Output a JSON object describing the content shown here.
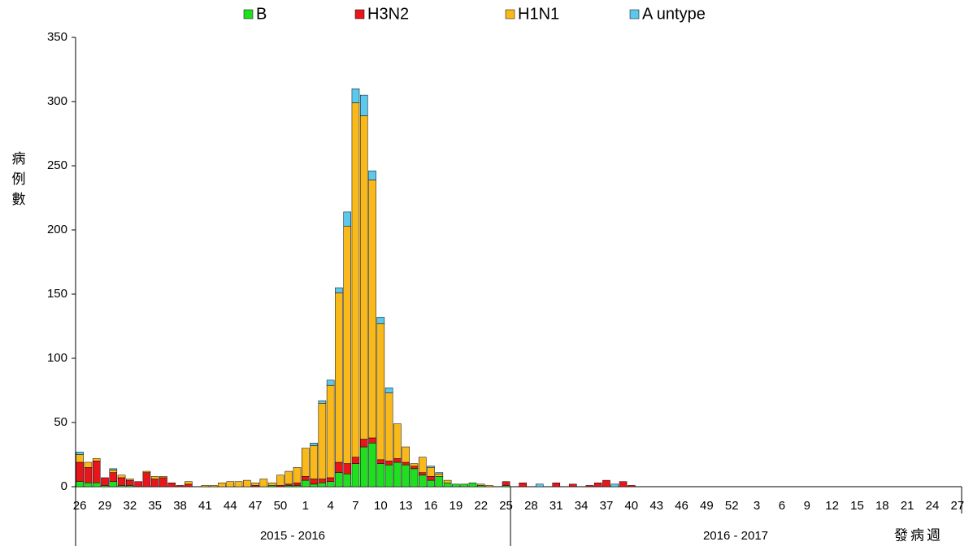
{
  "chart_data": {
    "type": "stacked_bar",
    "y_label": "病例數",
    "x_label": "發病週",
    "group_labels": [
      "2015 - 2016",
      "2016 - 2017"
    ],
    "categories": [
      "26",
      null,
      null,
      "29",
      null,
      null,
      "32",
      null,
      null,
      "35",
      null,
      null,
      "38",
      null,
      null,
      "41",
      null,
      null,
      "44",
      null,
      null,
      "47",
      null,
      null,
      "50",
      null,
      null,
      "1",
      null,
      null,
      "4",
      null,
      null,
      "7",
      null,
      null,
      "10",
      null,
      null,
      "13",
      null,
      null,
      "16",
      null,
      null,
      "19",
      null,
      null,
      "22",
      null,
      null,
      "25",
      null,
      null,
      "28",
      null,
      null,
      "31",
      null,
      null,
      "34",
      null,
      null,
      "37",
      null,
      null,
      "40",
      null,
      null,
      "43",
      null,
      null,
      "46",
      null,
      null,
      "49",
      null,
      null,
      "52",
      null,
      null,
      "3",
      null,
      null,
      "6",
      null,
      null,
      "9",
      null,
      null,
      "12",
      null,
      null,
      "15",
      null,
      null,
      "18",
      null,
      null,
      "21",
      null,
      null,
      "24",
      null,
      null,
      "27"
    ],
    "series": [
      {
        "name": "B",
        "color": "#1ee01e",
        "values": [
          4,
          3,
          3,
          1,
          4,
          1,
          1,
          0,
          0,
          0,
          0,
          0,
          0,
          0,
          0,
          0,
          0,
          0,
          0,
          0,
          0,
          0,
          0,
          1,
          0,
          1,
          1,
          5,
          2,
          3,
          4,
          11,
          10,
          18,
          31,
          34,
          18,
          17,
          19,
          17,
          14,
          9,
          5,
          8,
          3,
          2,
          2,
          3,
          1,
          0,
          0,
          1,
          0,
          0,
          0,
          0,
          0,
          0,
          0,
          0,
          0,
          0,
          0,
          0,
          0,
          0,
          0,
          0,
          0,
          0,
          0,
          0,
          0,
          0,
          0,
          0,
          0,
          0,
          0,
          0,
          0,
          0,
          0,
          0,
          0,
          0,
          0,
          0,
          0,
          0,
          0,
          0,
          0,
          0,
          0,
          0,
          0,
          0,
          0,
          0,
          0,
          0,
          0,
          0,
          0,
          0
        ]
      },
      {
        "name": "H3N2",
        "color": "#e8161b",
        "values": [
          15,
          12,
          17,
          6,
          7,
          6,
          4,
          4,
          11,
          6,
          7,
          3,
          1,
          2,
          0,
          0,
          0,
          0,
          0,
          0,
          0,
          1,
          0,
          0,
          1,
          1,
          2,
          3,
          4,
          3,
          3,
          8,
          8,
          5,
          6,
          4,
          3,
          3,
          3,
          2,
          2,
          2,
          3,
          0,
          0,
          0,
          0,
          0,
          0,
          0,
          0,
          3,
          0,
          3,
          0,
          0,
          0,
          3,
          0,
          2,
          0,
          1,
          3,
          5,
          0,
          4,
          1,
          0,
          0,
          0,
          0,
          0,
          0,
          0,
          0,
          0,
          0,
          0,
          0,
          0,
          0,
          0,
          0,
          0,
          0,
          0,
          0,
          0,
          0,
          0,
          0,
          0,
          0,
          0,
          0,
          0,
          0,
          0,
          0,
          0,
          0,
          0,
          0,
          0,
          0,
          0
        ]
      },
      {
        "name": "H1N1",
        "color": "#f9b91b",
        "values": [
          6,
          4,
          2,
          0,
          2,
          2,
          1,
          0,
          1,
          2,
          1,
          0,
          0,
          2,
          0,
          1,
          1,
          3,
          4,
          4,
          5,
          2,
          6,
          2,
          8,
          10,
          12,
          22,
          26,
          59,
          72,
          132,
          185,
          276,
          252,
          201,
          106,
          53,
          27,
          12,
          2,
          12,
          7,
          2,
          2,
          0,
          0,
          0,
          1,
          1,
          0,
          0,
          0,
          0,
          0,
          0,
          0,
          0,
          0,
          0,
          0,
          0,
          0,
          0,
          0,
          0,
          0,
          0,
          0,
          0,
          0,
          0,
          0,
          0,
          0,
          0,
          0,
          0,
          0,
          0,
          0,
          0,
          0,
          0,
          0,
          0,
          0,
          0,
          0,
          0,
          0,
          0,
          0,
          0,
          0,
          0,
          0,
          0,
          0,
          0,
          0,
          0,
          0,
          0,
          0,
          0
        ]
      },
      {
        "name": "A untype",
        "color": "#5bc8ec",
        "values": [
          2,
          0,
          0,
          0,
          1,
          0,
          0,
          0,
          0,
          0,
          0,
          0,
          0,
          0,
          0,
          0,
          0,
          0,
          0,
          0,
          0,
          0,
          0,
          0,
          0,
          0,
          0,
          0,
          2,
          2,
          4,
          4,
          11,
          11,
          16,
          7,
          5,
          4,
          0,
          0,
          0,
          0,
          1,
          1,
          0,
          0,
          0,
          0,
          0,
          0,
          0,
          0,
          0,
          0,
          0,
          2,
          0,
          0,
          0,
          0,
          0,
          0,
          0,
          0,
          2,
          0,
          0,
          0,
          0,
          0,
          0,
          0,
          0,
          0,
          0,
          0,
          0,
          0,
          0,
          0,
          0,
          0,
          0,
          0,
          0,
          0,
          0,
          0,
          0,
          0,
          0,
          0,
          0,
          0,
          0,
          0,
          0,
          0,
          0,
          0,
          0,
          0,
          0,
          0,
          0,
          0
        ]
      }
    ],
    "ylim": [
      0,
      350
    ],
    "yticks": [
      0,
      50,
      100,
      150,
      200,
      250,
      300,
      350
    ]
  }
}
